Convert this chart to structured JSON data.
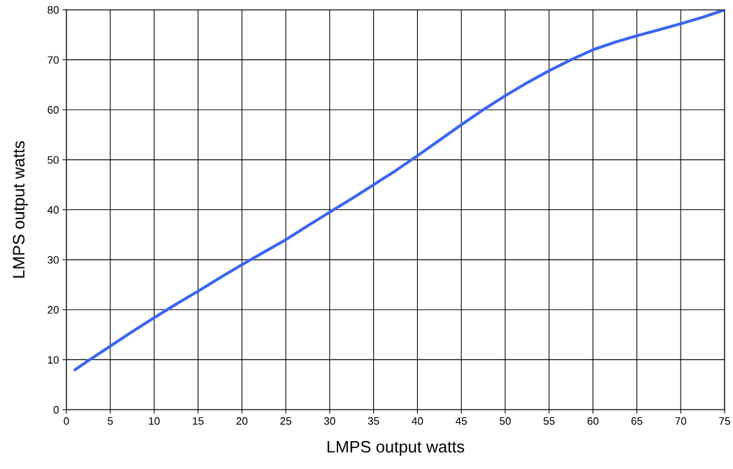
{
  "chart_data": {
    "type": "line",
    "xlabel": "LMPS output watts",
    "ylabel": "LMPS output watts",
    "x": [
      1,
      2.5,
      5,
      7.5,
      10,
      12.5,
      15,
      17.5,
      20,
      22.5,
      25,
      27.5,
      30,
      32.5,
      35,
      37.5,
      40,
      42.5,
      45,
      47.5,
      50,
      52.5,
      55,
      57.5,
      60,
      62.5,
      65,
      67.5,
      70,
      72.5,
      75
    ],
    "series": [
      {
        "color": "#3a66f0",
        "values": [
          8,
          9.8,
          12.7,
          15.6,
          18.4,
          21.1,
          23.7,
          26.4,
          29,
          31.5,
          34,
          36.8,
          39.5,
          42.2,
          45,
          47.8,
          50.8,
          53.9,
          57,
          60,
          62.8,
          65.4,
          67.8,
          70,
          72,
          73.5,
          74.8,
          76,
          77.2,
          78.5,
          80
        ]
      }
    ],
    "xlim": [
      0,
      75
    ],
    "xticks": [
      0,
      5,
      10,
      15,
      20,
      25,
      30,
      35,
      40,
      45,
      50,
      55,
      60,
      65,
      70,
      75
    ],
    "ylim": [
      0,
      80
    ],
    "yticks": [
      0,
      10,
      20,
      30,
      40,
      50,
      60,
      70,
      80
    ],
    "grid": true,
    "marker": "none",
    "line_style": "solid"
  }
}
